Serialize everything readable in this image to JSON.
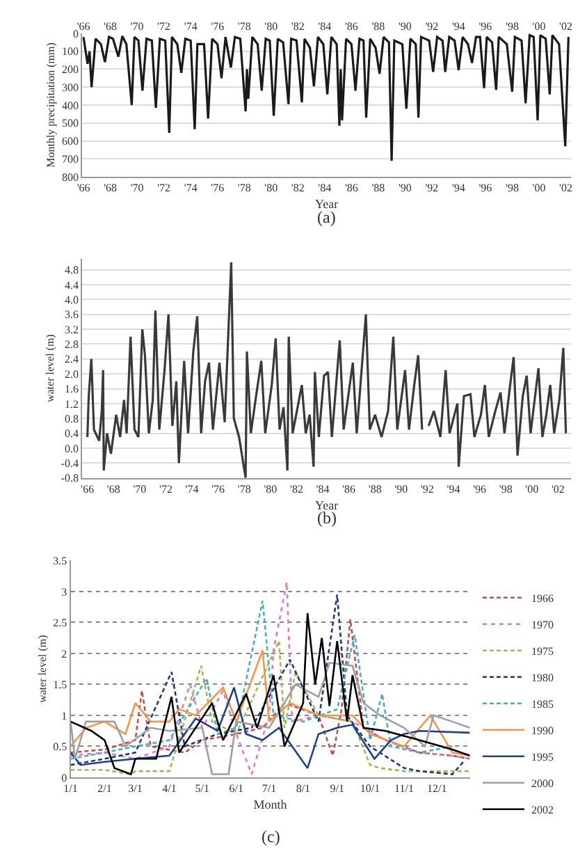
{
  "chart_data": [
    {
      "type": "line",
      "xlabel": "Year",
      "ylabel": "Monthly precipitation (mm)",
      "annotations": [
        "(a)"
      ],
      "color": "#1a1a1a",
      "grid": "y",
      "xlim": [
        1965.9,
        2002.4
      ],
      "x2lim": [
        1965.9,
        2002.4
      ],
      "xticks": [
        {
          "value": 1966,
          "label": "'66"
        },
        {
          "value": 1968,
          "label": "'68"
        },
        {
          "value": 1970,
          "label": "'70"
        },
        {
          "value": 1972,
          "label": "'72"
        },
        {
          "value": 1974,
          "label": "'74"
        },
        {
          "value": 1976,
          "label": "'76"
        },
        {
          "value": 1978,
          "label": "'78"
        },
        {
          "value": 1980,
          "label": "'80"
        },
        {
          "value": 1982,
          "label": "'82"
        },
        {
          "value": 1984,
          "label": "'84"
        },
        {
          "value": 1986,
          "label": "'86"
        },
        {
          "value": 1988,
          "label": "'88"
        },
        {
          "value": 1990,
          "label": "'90"
        },
        {
          "value": 1992,
          "label": "'92"
        },
        {
          "value": 1994,
          "label": "'94"
        },
        {
          "value": 1996,
          "label": "'96"
        },
        {
          "value": 1998,
          "label": "'98"
        },
        {
          "value": 2000,
          "label": "'00"
        },
        {
          "value": 2002,
          "label": "'02"
        }
      ],
      "x2ticks": [
        {
          "value": 1966,
          "label": "'66"
        },
        {
          "value": 1968,
          "label": "'68"
        },
        {
          "value": 1970,
          "label": "'70"
        },
        {
          "value": 1972,
          "label": "'72"
        },
        {
          "value": 1974,
          "label": "'74"
        },
        {
          "value": 1976,
          "label": "'76"
        },
        {
          "value": 1978,
          "label": "'78"
        },
        {
          "value": 1980,
          "label": "'80"
        },
        {
          "value": 1982,
          "label": "'82"
        },
        {
          "value": 1984,
          "label": "'84"
        },
        {
          "value": 1986,
          "label": "'86"
        },
        {
          "value": 1988,
          "label": "'88"
        },
        {
          "value": 1990,
          "label": "'90"
        },
        {
          "value": 1992,
          "label": "'92"
        },
        {
          "value": 1994,
          "label": "'94"
        },
        {
          "value": 1996,
          "label": "'96"
        },
        {
          "value": 1998,
          "label": "'98"
        },
        {
          "value": 2000,
          "label": "'00"
        },
        {
          "value": 2002,
          "label": "'02"
        }
      ],
      "ylim": [
        800,
        0
      ],
      "yticks": [
        0,
        100,
        200,
        300,
        400,
        500,
        600,
        700,
        800
      ],
      "x": [
        1966.0,
        1966.3,
        1966.45,
        1966.6,
        1966.9,
        1967.3,
        1967.6,
        1967.9,
        1968.2,
        1968.6,
        1968.9,
        1969.2,
        1969.6,
        1969.8,
        1970.1,
        1970.4,
        1970.7,
        1971.1,
        1971.4,
        1971.7,
        1972.1,
        1972.4,
        1972.6,
        1973.0,
        1973.3,
        1973.6,
        1974.0,
        1974.3,
        1974.5,
        1975.0,
        1975.3,
        1975.6,
        1976.0,
        1976.3,
        1976.6,
        1977.0,
        1977.3,
        1977.7,
        1978.1,
        1978.2,
        1978.3,
        1978.6,
        1979.0,
        1979.3,
        1979.6,
        1979.9,
        1980.2,
        1980.5,
        1980.9,
        1981.3,
        1981.5,
        1981.9,
        1982.3,
        1982.5,
        1982.9,
        1983.2,
        1983.5,
        1983.9,
        1984.2,
        1984.5,
        1984.9,
        1985.1,
        1985.2,
        1985.3,
        1985.6,
        1986.0,
        1986.3,
        1986.6,
        1986.9,
        1987.1,
        1987.4,
        1987.8,
        1988.1,
        1988.4,
        1988.8,
        1989.0,
        1989.2,
        1989.8,
        1990.1,
        1990.4,
        1990.8,
        1991.0,
        1991.2,
        1991.8,
        1992.1,
        1992.4,
        1992.8,
        1993.0,
        1993.3,
        1993.7,
        1994.0,
        1994.3,
        1994.7,
        1995.0,
        1995.3,
        1995.6,
        1995.9,
        1996.1,
        1996.5,
        1996.8,
        1997.0,
        1997.6,
        1998.0,
        1998.2,
        1998.7,
        1999.0,
        1999.3,
        1999.6,
        1999.9,
        2000.1,
        2000.5,
        2000.8,
        2001.0,
        2001.5,
        2001.96,
        2002.2
      ],
      "values": [
        20,
        170,
        100,
        300,
        30,
        60,
        160,
        20,
        30,
        130,
        15,
        60,
        400,
        20,
        40,
        320,
        30,
        40,
        415,
        30,
        40,
        555,
        20,
        60,
        220,
        30,
        40,
        535,
        60,
        60,
        475,
        30,
        60,
        250,
        20,
        190,
        20,
        30,
        435,
        200,
        365,
        20,
        60,
        320,
        30,
        40,
        460,
        30,
        50,
        395,
        30,
        40,
        385,
        30,
        80,
        295,
        20,
        60,
        340,
        20,
        60,
        515,
        200,
        485,
        30,
        60,
        320,
        30,
        40,
        470,
        30,
        80,
        225,
        20,
        50,
        710,
        40,
        60,
        420,
        30,
        60,
        470,
        20,
        40,
        215,
        20,
        40,
        215,
        20,
        40,
        205,
        20,
        60,
        165,
        20,
        20,
        305,
        20,
        50,
        315,
        20,
        60,
        325,
        20,
        40,
        390,
        10,
        20,
        485,
        10,
        30,
        340,
        10,
        60,
        630,
        20
      ]
    },
    {
      "type": "line",
      "xlabel": "Year",
      "ylabel": "water level (m)",
      "annotations": [
        "(b)"
      ],
      "color": "#3a3a3a",
      "grid": "y",
      "xlim": [
        1965.6,
        2003.0
      ],
      "xticks": [
        {
          "value": 1966,
          "label": "'66"
        },
        {
          "value": 1968,
          "label": "'68"
        },
        {
          "value": 1970,
          "label": "'70"
        },
        {
          "value": 1972,
          "label": "'72"
        },
        {
          "value": 1974,
          "label": "'74"
        },
        {
          "value": 1976,
          "label": "'76"
        },
        {
          "value": 1978,
          "label": "'78"
        },
        {
          "value": 1980,
          "label": "'80"
        },
        {
          "value": 1982,
          "label": "'82"
        },
        {
          "value": 1984,
          "label": "'84"
        },
        {
          "value": 1986,
          "label": "'86"
        },
        {
          "value": 1988,
          "label": "'88"
        },
        {
          "value": 1990,
          "label": "'90"
        },
        {
          "value": 1992,
          "label": "'92"
        },
        {
          "value": 1994,
          "label": "'94"
        },
        {
          "value": 1996,
          "label": "'96"
        },
        {
          "value": 1998,
          "label": "'98"
        },
        {
          "value": 2000,
          "label": "'00"
        },
        {
          "value": 2002,
          "label": "'02"
        }
      ],
      "ylim": [
        -0.8,
        5.1
      ],
      "yticks": [
        -0.8,
        -0.4,
        {
          "value": 0,
          "label": "0.0"
        },
        0.4,
        0.8,
        1.2,
        1.6,
        {
          "value": 2,
          "label": "2.0"
        },
        2.4,
        2.8,
        3.2,
        3.6,
        {
          "value": 4,
          "label": "4.0"
        },
        4.4,
        4.8
      ],
      "x": [
        1966.0,
        1966.1,
        1966.3,
        1966.5,
        1966.9,
        1967.1,
        1967.2,
        1967.25,
        1967.5,
        1967.8,
        1968.2,
        1968.5,
        1968.8,
        1969.0,
        1969.3,
        1969.6,
        1969.9,
        1970.2,
        1970.4,
        1970.7,
        1971.0,
        1971.2,
        1971.5,
        1971.9,
        1972.2,
        1972.5,
        1972.8,
        1973.0,
        1973.4,
        1973.7,
        1974.1,
        1974.4,
        1974.7,
        1975.0,
        1975.3,
        1975.6,
        1976.1,
        1976.5,
        1977.0,
        1977.2,
        1977.6,
        1978.1,
        1978.2,
        1978.5,
        1978.9,
        1979.3,
        1979.6,
        1980.1,
        1980.4,
        1980.7,
        1981.0,
        1981.3,
        1981.4,
        1981.7,
        1982.4,
        1982.7,
        1983.0,
        1983.3,
        1983.4,
        1983.7,
        1984.1,
        1984.4,
        1984.7,
        1985.3,
        1985.6,
        1986.3,
        1986.6,
        1987.3,
        1987.6,
        1988.0,
        1988.5,
        1989.0,
        1989.4,
        1989.7,
        1990.3,
        1990.6,
        1991.0,
        1991.3,
        1991.6,
        1991.8,
        1992.1,
        1992.5,
        1993.0,
        1993.4,
        1993.7,
        1994.3,
        1994.4,
        1994.8,
        1995.3,
        1995.6,
        1996.1,
        1996.4,
        1996.7,
        1997.2,
        1997.6,
        1997.9,
        1998.3,
        1998.6,
        1998.9,
        1999.3,
        1999.6,
        1999.9,
        2000.5,
        2000.8,
        2001.1,
        2001.4,
        2001.7,
        2002.1,
        2002.4,
        2002.6
      ],
      "values": [
        0.3,
        1.4,
        2.4,
        0.5,
        0.2,
        1.0,
        2.1,
        -0.6,
        0.4,
        -0.15,
        0.9,
        0.3,
        1.3,
        0.4,
        3.0,
        0.5,
        0.3,
        3.2,
        2.5,
        0.4,
        1.3,
        3.7,
        0.5,
        2.1,
        3.6,
        0.6,
        1.8,
        -0.4,
        2.35,
        0.4,
        2.6,
        3.55,
        0.4,
        1.8,
        2.3,
        0.5,
        2.3,
        0.7,
        5.0,
        0.8,
        0.3,
        -0.8,
        2.6,
        0.4,
        1.4,
        2.35,
        0.4,
        1.7,
        2.95,
        0.5,
        1.1,
        -0.6,
        3.0,
        0.4,
        1.7,
        0.4,
        0.9,
        -0.5,
        2.05,
        0.3,
        1.95,
        2.05,
        0.3,
        2.9,
        0.5,
        2.3,
        0.4,
        3.6,
        0.5,
        0.9,
        0.3,
        1.0,
        3.0,
        0.5,
        2.1,
        0.5,
        1.7,
        2.5,
        0.5,
        null,
        0.6,
        1.0,
        0.3,
        2.1,
        0.4,
        1.2,
        -0.5,
        1.4,
        1.45,
        0.3,
        0.9,
        1.7,
        0.3,
        1.0,
        1.5,
        0.4,
        1.6,
        2.45,
        -0.2,
        1.4,
        1.95,
        0.4,
        2.15,
        0.3,
        0.9,
        1.7,
        0.4,
        1.3,
        2.7,
        0.4
      ]
    },
    {
      "type": "line",
      "xlabel": "Month",
      "ylabel": "water level (m)",
      "annotations": [
        "(c)"
      ],
      "grid": "y",
      "legend": "right",
      "xlim": [
        "--01-01",
        "--12-31"
      ],
      "xticks": [
        {
          "value": "--01-01",
          "label": "1/1"
        },
        {
          "value": "--02-01",
          "label": "2/1"
        },
        {
          "value": "--03-01",
          "label": "3/1"
        },
        {
          "value": "--04-01",
          "label": "4/1"
        },
        {
          "value": "--05-01",
          "label": "5/1"
        },
        {
          "value": "--06-01",
          "label": "6/1"
        },
        {
          "value": "--07-01",
          "label": "7/1"
        },
        {
          "value": "--08-01",
          "label": "8/1"
        },
        {
          "value": "--09-01",
          "label": "9/1"
        },
        {
          "value": "--10-01",
          "label": "10/1"
        },
        {
          "value": "--11-01",
          "label": "11/1"
        },
        {
          "value": "--12-01",
          "label": "12/1"
        }
      ],
      "ylim": [
        0,
        3.5
      ],
      "yticks": [
        0,
        0.5,
        1,
        1.5,
        2,
        2.5,
        3,
        3.5
      ],
      "series": [
        {
          "name": "1966",
          "color": "#c0504d",
          "line_style": "dashed",
          "x": [
            "--01-01",
            "--02-01",
            "--03-01",
            "--03-07",
            "--03-15",
            "--04-15",
            "--05-01",
            "--06-01",
            "--06-25",
            "--07-15",
            "--08-15",
            "--08-28",
            "--09-05",
            "--09-13",
            "--09-25",
            "--10-15",
            "--11-15",
            "--12-15",
            "--12-31"
          ],
          "values": [
            0.4,
            0.45,
            0.6,
            1.4,
            0.5,
            0.4,
            0.6,
            0.7,
            0.8,
            1.2,
            1.0,
            0.35,
            1.1,
            2.55,
            0.8,
            0.6,
            0.4,
            0.35,
            0.3
          ]
        },
        {
          "name": "1970",
          "color": "#e377c2",
          "line_style": "dotted",
          "x": [
            "--01-01",
            "--02-01",
            "--03-01",
            "--04-01",
            "--04-20",
            "--05-01",
            "--05-20",
            "--06-01",
            "--06-15",
            "--07-01",
            "--07-05",
            "--07-17",
            "--07-22",
            "--08-15",
            "--09-15",
            "--10-15",
            "--11-15",
            "--12-15",
            "--12-31"
          ],
          "values": [
            0.35,
            0.4,
            0.3,
            0.5,
            1.5,
            0.8,
            1.4,
            0.7,
            0.05,
            1.0,
            2.05,
            3.15,
            0.9,
            1.0,
            0.9,
            0.6,
            0.4,
            0.35,
            0.3
          ]
        },
        {
          "name": "1975",
          "color": "#9bbb59",
          "line_style": "dashed",
          "x": [
            "--01-01",
            "--02-01",
            "--02-25",
            "--03-01",
            "--04-01",
            "--04-30",
            "--05-10",
            "--06-01",
            "--07-10",
            "--07-15",
            "--07-25",
            "--08-15",
            "--09-15",
            "--10-01",
            "--10-10",
            "--11-01",
            "--12-01",
            "--12-31"
          ],
          "values": [
            0.12,
            0.12,
            0.05,
            0.1,
            0.1,
            1.8,
            0.9,
            0.7,
            2.2,
            0.8,
            1.7,
            1.0,
            0.9,
            0.2,
            0.15,
            0.1,
            0.1,
            0.1
          ]
        },
        {
          "name": "1980",
          "color": "#1f3a7a",
          "line_style": "dashed",
          "x": [
            "--01-01",
            "--02-01",
            "--03-01",
            "--04-03",
            "--04-15",
            "--05-15",
            "--06-15",
            "--07-20",
            "--08-15",
            "--09-01",
            "--09-10",
            "--10-01",
            "--11-01",
            "--11-15",
            "--12-15",
            "--12-25"
          ],
          "values": [
            0.2,
            0.3,
            0.4,
            1.7,
            0.5,
            0.7,
            0.8,
            1.9,
            0.9,
            2.95,
            1.0,
            0.5,
            0.15,
            0.1,
            0.05,
            0.25
          ]
        },
        {
          "name": "1985",
          "color": "#4bacc6",
          "line_style": "dashed",
          "x": [
            "--01-01",
            "--02-01",
            "--03-01",
            "--04-01",
            "--05-05",
            "--05-15",
            "--06-01",
            "--06-25",
            "--07-05",
            "--08-01",
            "--09-01",
            "--09-17",
            "--10-01",
            "--10-12",
            "--10-20",
            "--11-15",
            "--12-15"
          ],
          "values": [
            0.3,
            0.4,
            0.5,
            0.6,
            1.6,
            0.7,
            0.8,
            2.85,
            1.0,
            0.9,
            1.1,
            2.3,
            0.6,
            1.35,
            0.5,
            0.4,
            0.5
          ]
        },
        {
          "name": "1990",
          "color": "#f79646",
          "line_style": "solid",
          "x": [
            "--01-01",
            "--01-15",
            "--02-01",
            "--02-20",
            "--03-01",
            "--03-15",
            "--04-01",
            "--04-10",
            "--04-25",
            "--05-20",
            "--06-01",
            "--06-25",
            "--07-01",
            "--07-20",
            "--08-15",
            "--09-15",
            "--10-01",
            "--11-01",
            "--11-25",
            "--12-15",
            "--12-31"
          ],
          "values": [
            0.5,
            0.8,
            0.9,
            0.7,
            1.2,
            0.9,
            0.9,
            1.1,
            1.0,
            1.45,
            0.9,
            2.05,
            0.9,
            1.2,
            1.0,
            1.0,
            0.7,
            0.5,
            1.0,
            0.4,
            0.35
          ]
        },
        {
          "name": "1995",
          "color": "#1f3f8f",
          "line_style": "solid",
          "x": [
            "--01-01",
            "--01-10",
            "--02-01",
            "--03-01",
            "--04-01",
            "--04-25",
            "--05-15",
            "--05-30",
            "--06-10",
            "--06-25",
            "--07-10",
            "--08-05",
            "--08-15",
            "--09-01",
            "--09-15",
            "--10-05",
            "--10-20",
            "--11-01",
            "--11-15",
            "--12-31"
          ],
          "values": [
            0.4,
            0.2,
            0.25,
            0.3,
            0.35,
            0.95,
            0.75,
            1.45,
            0.7,
            0.6,
            0.8,
            0.15,
            0.7,
            0.8,
            0.85,
            0.3,
            0.6,
            0.7,
            0.75,
            0.72
          ]
        },
        {
          "name": "2000",
          "color": "#a0a0a0",
          "line_style": "solid",
          "x": [
            "--01-01",
            "--01-05",
            "--01-15",
            "--02-10",
            "--02-20",
            "--03-15",
            "--04-01",
            "--05-01",
            "--05-10",
            "--05-25",
            "--06-01",
            "--07-01",
            "--07-25",
            "--08-15",
            "--08-25",
            "--09-15",
            "--09-25",
            "--10-10",
            "--11-01",
            "--11-20",
            "--11-28",
            "--12-15",
            "--12-31"
          ],
          "values": [
            0.9,
            0.3,
            0.9,
            0.9,
            0.5,
            0.8,
            0.75,
            0.8,
            0.05,
            0.05,
            0.9,
            0.8,
            1.5,
            1.3,
            1.85,
            1.8,
            1.2,
            1.0,
            0.8,
            0.5,
            1.0,
            0.9,
            0.8
          ]
        },
        {
          "name": "2002",
          "color": "#000000",
          "line_style": "solid",
          "x": [
            "--01-01",
            "--01-20",
            "--02-01",
            "--02-10",
            "--02-25",
            "--03-01",
            "--03-20",
            "--04-03",
            "--04-10",
            "--05-10",
            "--05-20",
            "--06-10",
            "--06-20",
            "--07-05",
            "--07-15",
            "--08-01",
            "--08-05",
            "--08-12",
            "--08-18",
            "--08-25",
            "--09-01",
            "--09-10",
            "--09-15",
            "--09-25",
            "--10-15",
            "--11-15",
            "--12-15",
            "--12-31"
          ],
          "values": [
            0.9,
            0.75,
            0.6,
            0.15,
            0.05,
            0.3,
            0.3,
            1.3,
            0.4,
            1.2,
            0.6,
            1.35,
            0.8,
            1.65,
            0.5,
            1.2,
            2.65,
            1.5,
            2.25,
            1.15,
            2.2,
            0.9,
            1.65,
            0.8,
            0.75,
            0.6,
            0.45,
            0.35
          ]
        }
      ]
    }
  ]
}
